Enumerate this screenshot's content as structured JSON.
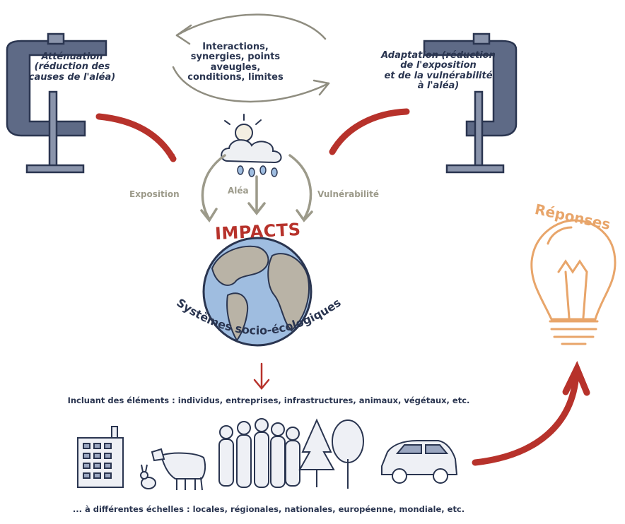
{
  "interactions": {
    "line1": "Interactions,",
    "line2": "synergies, points aveugles,",
    "line3": "conditions, limites"
  },
  "attenuation": {
    "line1": "Atténuation",
    "line2": "(réduction des",
    "line3": "causes de l'aléa)"
  },
  "adaptation": {
    "line1": "Adaptation (réduction",
    "line2": "de l'exposition",
    "line3": "et de la vulnérabilité",
    "line4": "à l'aléa)"
  },
  "factors": {
    "exposition": "Exposition",
    "alea": "Aléa",
    "vulnerabilite": "Vulnérabilité"
  },
  "impacts": "IMPACTS",
  "systems": "Systèmes socio-écologiques",
  "reponses": "Réponses",
  "including": "Incluant des éléments : individus, entreprises, infrastructures, animaux, végétaux, etc.",
  "scales": "... à différentes échelles : locales, régionales, nationales, européenne, mondiale, etc.",
  "colors": {
    "navy": "#2a3550",
    "red": "#b7322b",
    "grey": "#9c9a8a",
    "orange": "#e8a56a",
    "ocean": "#9fbde0",
    "land": "#b9b3a6",
    "clamp": "#5e6a86"
  },
  "icons": [
    "clamp-icon",
    "cloud-rain-icon",
    "globe-icon",
    "lightbulb-icon",
    "building-icon",
    "cow-icon",
    "rabbit-icon",
    "people-icon",
    "trees-icon",
    "car-icon"
  ]
}
